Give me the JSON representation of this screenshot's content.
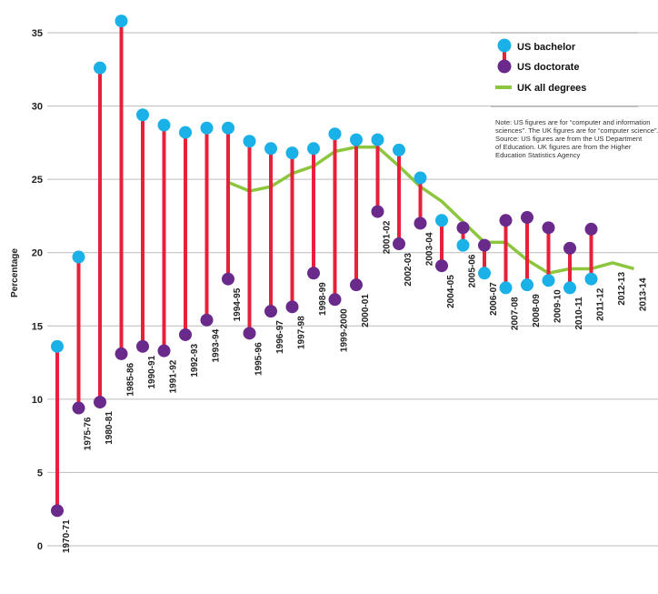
{
  "chart_data": {
    "type": "dumbbell-line",
    "ylabel": "Percentage",
    "ylim": [
      0,
      35
    ],
    "yticks": [
      0,
      5,
      10,
      15,
      20,
      25,
      30,
      35
    ],
    "grid": true,
    "legend_position": "top-right",
    "categories": [
      "1970-71",
      "1975-76",
      "1980-81",
      "1985-86",
      "1990-91",
      "1991-92",
      "1992-93",
      "1993-94",
      "1994-95",
      "1995-96",
      "1996-97",
      "1997-98",
      "1998-99",
      "1999-2000",
      "2000-01",
      "2001-02",
      "2002-03",
      "2003-04",
      "2004-05",
      "2005-06",
      "2006-07",
      "2007-08",
      "2008-09",
      "2009-10",
      "2010-11",
      "2011-12",
      "2012-13",
      "2013-14"
    ],
    "series": [
      {
        "name": "US bachelor",
        "color": "#1ab0e8",
        "values": [
          13.6,
          19.7,
          32.6,
          35.8,
          29.4,
          28.7,
          28.2,
          28.5,
          28.5,
          27.6,
          27.1,
          26.8,
          27.1,
          28.1,
          27.7,
          27.7,
          27.0,
          25.1,
          22.2,
          20.5,
          18.6,
          17.6,
          17.8,
          18.1,
          17.6,
          18.2,
          null,
          null
        ]
      },
      {
        "name": "US doctorate",
        "color": "#6a2a8c",
        "values": [
          2.4,
          9.4,
          9.8,
          13.1,
          13.6,
          13.3,
          14.4,
          15.4,
          18.2,
          14.5,
          16.0,
          16.3,
          18.6,
          16.8,
          17.8,
          22.8,
          20.6,
          22.0,
          19.1,
          21.7,
          20.5,
          22.2,
          22.4,
          21.7,
          20.3,
          21.6,
          null,
          null
        ]
      },
      {
        "name": "UK all degrees",
        "color": "#8cc63f",
        "values": [
          null,
          null,
          null,
          null,
          null,
          null,
          null,
          null,
          24.8,
          24.2,
          24.5,
          25.4,
          25.9,
          26.9,
          27.2,
          27.2,
          25.9,
          24.5,
          23.5,
          22.1,
          20.7,
          20.7,
          19.5,
          18.6,
          18.9,
          18.9,
          19.3,
          18.9
        ]
      }
    ],
    "connector_color": "#e8203a",
    "note": "Note: US figures are for “computer and information sciences”. The UK figures are for “computer science”. Source: US figures are from the US Department of Education. UK figures are from the Higher Education Statistics Agency",
    "note_lines": [
      "Note: US figures are for “computer and information",
      "sciences”. The UK figures are for “computer science”.",
      "Source: US figures are from the US Department",
      "of Education. UK figures are from the Higher",
      "Education Statistics Agency"
    ]
  }
}
